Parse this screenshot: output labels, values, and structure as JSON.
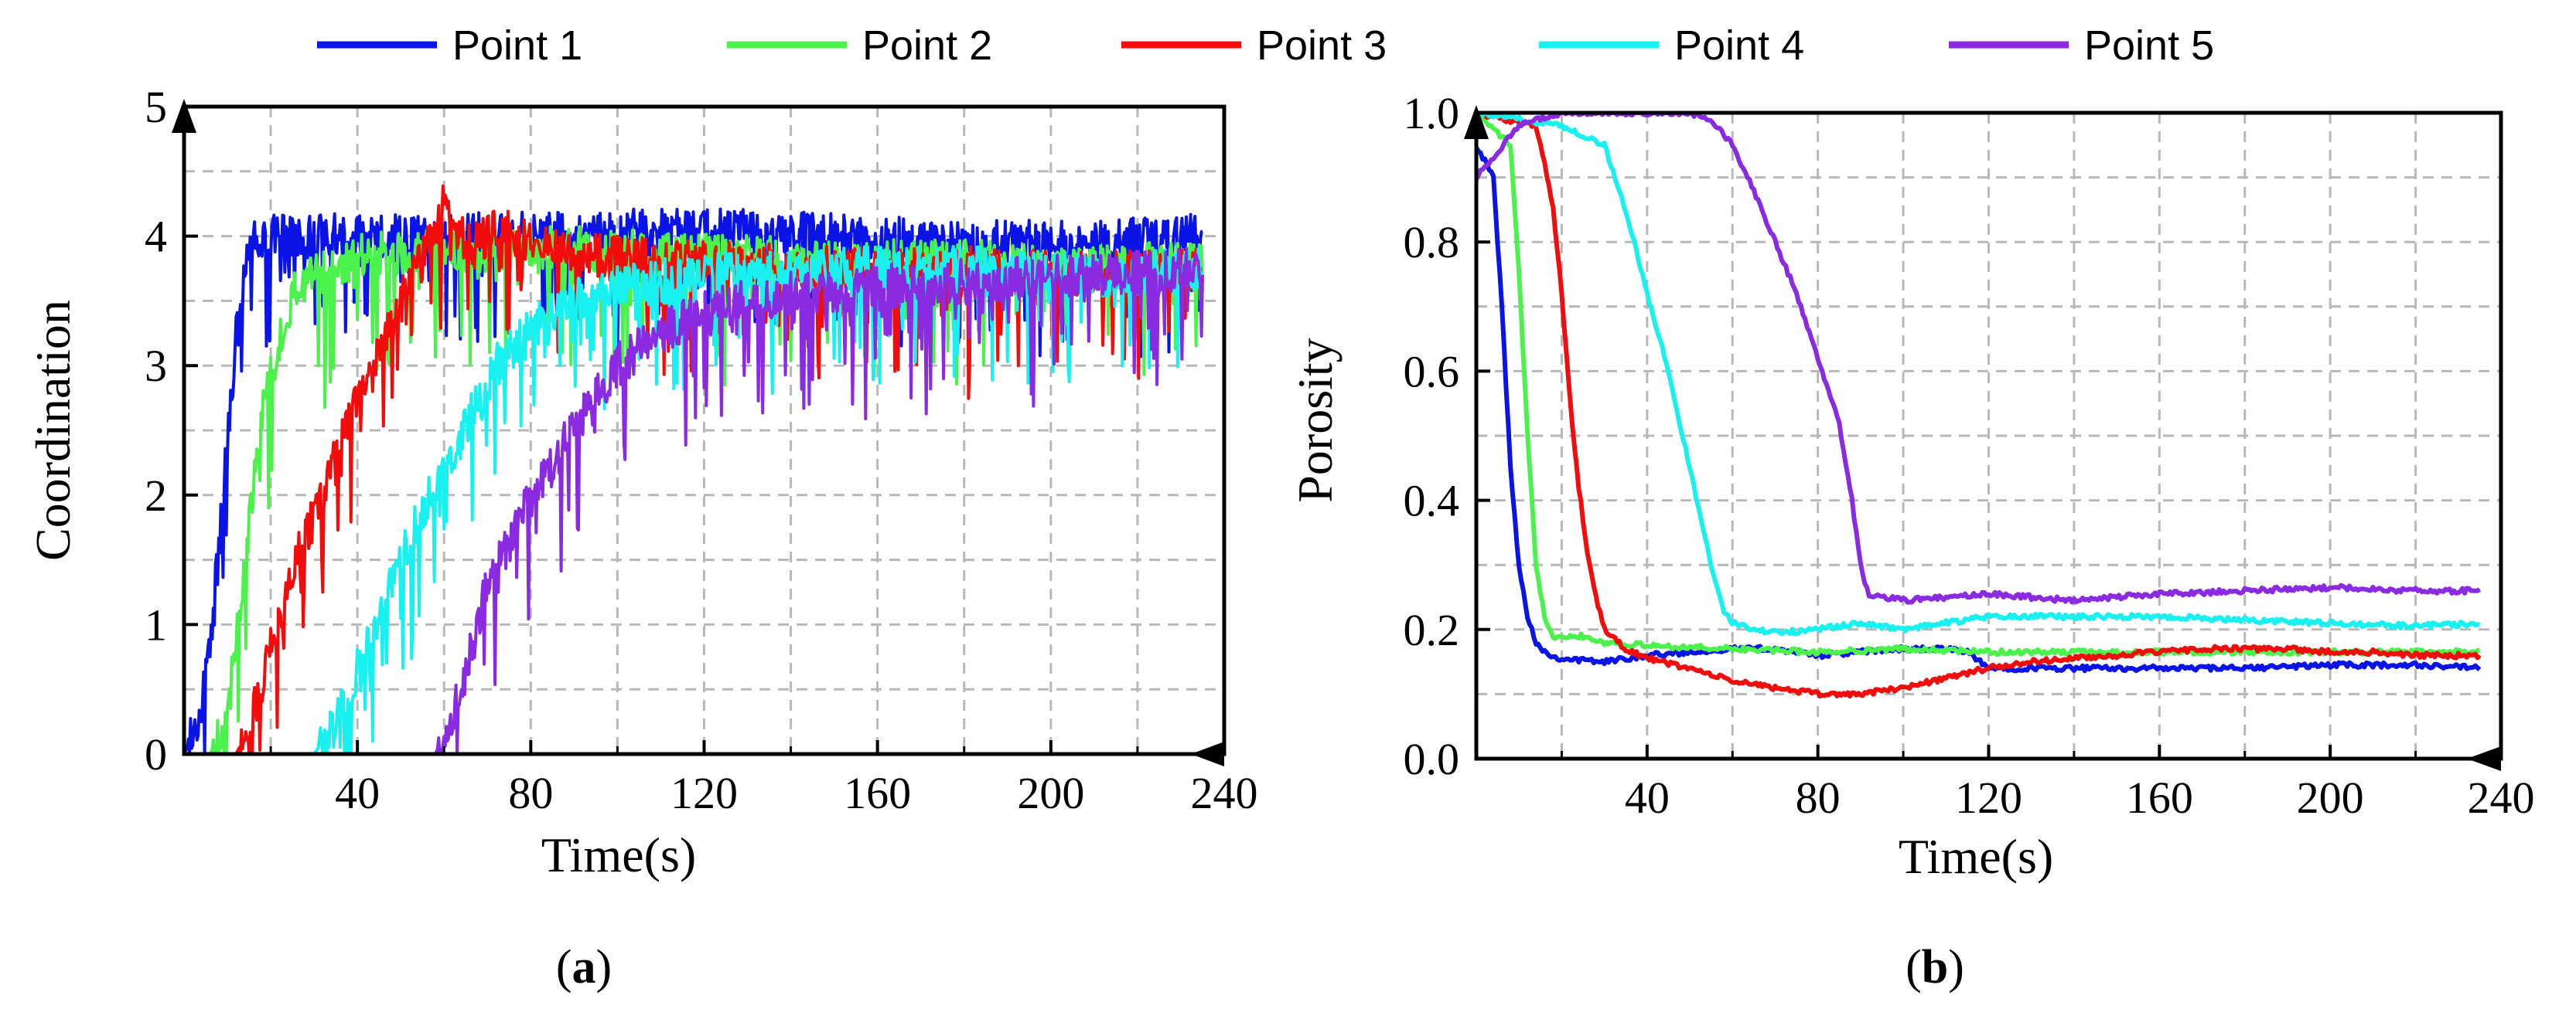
{
  "legend": {
    "entries": [
      {
        "name": "Point 1",
        "color": "#0a14e6"
      },
      {
        "name": "Point 2",
        "color": "#4cf24c"
      },
      {
        "name": "Point 3",
        "color": "#f20d0d"
      },
      {
        "name": "Point 4",
        "color": "#19f0f0"
      },
      {
        "name": "Point 5",
        "color": "#8a2be2"
      }
    ]
  },
  "panels": {
    "a": {
      "open": "(",
      "letter": "a",
      "close": ")"
    },
    "b": {
      "open": "(",
      "letter": "b",
      "close": ")"
    }
  },
  "chart_data": [
    {
      "type": "line",
      "panel": "a",
      "xlabel": "Time(s)",
      "ylabel": "Coordination",
      "xlim": [
        0,
        240
      ],
      "ylim": [
        0,
        5
      ],
      "xticks": [
        40,
        80,
        120,
        160,
        200,
        240
      ],
      "yticks": [
        0,
        1,
        2,
        3,
        4,
        5
      ],
      "grid": true,
      "noisy": true,
      "series": [
        {
          "name": "Point 1",
          "color": "#0a14e6",
          "x": [
            0,
            3,
            6,
            9,
            12,
            15,
            18,
            30,
            60,
            90,
            120,
            150,
            180,
            210,
            235
          ],
          "values": [
            0,
            0.2,
            0.8,
            2.0,
            3.2,
            3.9,
            4.0,
            4.0,
            4.0,
            4.02,
            4.05,
            4.0,
            3.95,
            3.95,
            4.0
          ]
        },
        {
          "name": "Point 2",
          "color": "#4cf24c",
          "x": [
            0,
            6,
            10,
            14,
            18,
            22,
            26,
            40,
            60,
            90,
            120,
            150,
            180,
            210,
            235
          ],
          "values": [
            0,
            0,
            0.3,
            1.5,
            2.6,
            3.2,
            3.6,
            3.85,
            3.9,
            3.9,
            3.85,
            3.8,
            3.8,
            3.75,
            3.8
          ]
        },
        {
          "name": "Point 3",
          "color": "#f20d0d",
          "x": [
            0,
            12,
            15,
            20,
            26,
            32,
            38,
            44,
            50,
            56,
            60,
            66,
            72,
            90,
            120,
            150,
            180,
            210,
            235
          ],
          "values": [
            0,
            0,
            0.2,
            0.8,
            1.5,
            2.0,
            2.6,
            3.0,
            3.5,
            3.9,
            4.25,
            3.9,
            4.05,
            3.85,
            3.8,
            3.75,
            3.75,
            3.7,
            3.75
          ]
        },
        {
          "name": "Point 4",
          "color": "#19f0f0",
          "x": [
            0,
            30,
            36,
            42,
            48,
            54,
            60,
            66,
            72,
            80,
            90,
            100,
            120,
            150,
            180,
            210,
            235
          ],
          "values": [
            0,
            0,
            0.3,
            0.8,
            1.3,
            1.8,
            2.2,
            2.6,
            3.0,
            3.3,
            3.5,
            3.6,
            3.7,
            3.75,
            3.75,
            3.7,
            3.75
          ]
        },
        {
          "name": "Point 5",
          "color": "#8a2be2",
          "x": [
            0,
            58,
            62,
            66,
            70,
            76,
            82,
            88,
            94,
            100,
            108,
            116,
            124,
            140,
            160,
            180,
            210,
            235
          ],
          "values": [
            0,
            0,
            0.3,
            0.8,
            1.3,
            1.7,
            2.1,
            2.4,
            2.7,
            3.0,
            3.2,
            3.35,
            3.45,
            3.55,
            3.6,
            3.65,
            3.7,
            3.75
          ]
        }
      ]
    },
    {
      "type": "line",
      "panel": "b",
      "xlabel": "Time(s)",
      "ylabel": "Porosity",
      "xlim": [
        0,
        240
      ],
      "ylim": [
        0,
        1
      ],
      "xticks": [
        40,
        80,
        120,
        160,
        200,
        240
      ],
      "yticks": [
        0.0,
        0.2,
        0.4,
        0.6,
        0.8,
        1.0
      ],
      "ytick_labels": [
        "0.0",
        "0.2",
        "0.4",
        "0.6",
        "0.8",
        "1.0"
      ],
      "grid": true,
      "series": [
        {
          "name": "Point 1",
          "color": "#0a14e6",
          "x": [
            0,
            4,
            6,
            8,
            10,
            12,
            14,
            17,
            20,
            30,
            40,
            50,
            60,
            70,
            80,
            90,
            100,
            110,
            115,
            120,
            140,
            160,
            180,
            200,
            220,
            235
          ],
          "values": [
            0.95,
            0.9,
            0.7,
            0.45,
            0.3,
            0.22,
            0.18,
            0.16,
            0.155,
            0.15,
            0.16,
            0.165,
            0.17,
            0.17,
            0.16,
            0.165,
            0.17,
            0.17,
            0.165,
            0.14,
            0.14,
            0.14,
            0.14,
            0.145,
            0.145,
            0.14
          ]
        },
        {
          "name": "Point 2",
          "color": "#4cf24c",
          "x": [
            0,
            8,
            10,
            12,
            14,
            16,
            18,
            25,
            30,
            40,
            60,
            80,
            100,
            120,
            140,
            160,
            180,
            200,
            220,
            235
          ],
          "values": [
            1.0,
            0.95,
            0.75,
            0.5,
            0.3,
            0.22,
            0.19,
            0.19,
            0.18,
            0.175,
            0.17,
            0.165,
            0.17,
            0.165,
            0.165,
            0.165,
            0.165,
            0.165,
            0.165,
            0.165
          ]
        },
        {
          "name": "Point 3",
          "color": "#f20d0d",
          "x": [
            0,
            14,
            16,
            18,
            20,
            22,
            24,
            26,
            28,
            30,
            35,
            40,
            50,
            60,
            70,
            80,
            90,
            100,
            110,
            120,
            130,
            140,
            150,
            160,
            170,
            180,
            190,
            200,
            210,
            220,
            235
          ],
          "values": [
            1.0,
            0.98,
            0.92,
            0.85,
            0.72,
            0.55,
            0.42,
            0.32,
            0.25,
            0.2,
            0.17,
            0.155,
            0.14,
            0.12,
            0.11,
            0.1,
            0.1,
            0.11,
            0.125,
            0.14,
            0.15,
            0.155,
            0.16,
            0.165,
            0.17,
            0.17,
            0.17,
            0.165,
            0.165,
            0.16,
            0.16
          ]
        },
        {
          "name": "Point 4",
          "color": "#19f0f0",
          "x": [
            0,
            20,
            30,
            35,
            40,
            45,
            50,
            55,
            58,
            60,
            65,
            70,
            80,
            90,
            100,
            110,
            120,
            140,
            160,
            180,
            200,
            220,
            235
          ],
          "values": [
            1.0,
            0.98,
            0.95,
            0.85,
            0.72,
            0.6,
            0.45,
            0.3,
            0.23,
            0.21,
            0.2,
            0.195,
            0.2,
            0.21,
            0.2,
            0.21,
            0.22,
            0.22,
            0.22,
            0.215,
            0.21,
            0.205,
            0.21
          ]
        },
        {
          "name": "Point 5",
          "color": "#8a2be2",
          "x": [
            0,
            10,
            20,
            30,
            40,
            50,
            55,
            60,
            65,
            70,
            75,
            80,
            85,
            88,
            90,
            92,
            95,
            100,
            110,
            120,
            140,
            160,
            180,
            200,
            220,
            235
          ],
          "values": [
            0.9,
            0.98,
            1.0,
            1.0,
            1.0,
            1.0,
            0.99,
            0.95,
            0.88,
            0.8,
            0.72,
            0.62,
            0.52,
            0.4,
            0.3,
            0.25,
            0.25,
            0.245,
            0.25,
            0.255,
            0.245,
            0.255,
            0.26,
            0.265,
            0.26,
            0.26
          ]
        }
      ]
    }
  ]
}
